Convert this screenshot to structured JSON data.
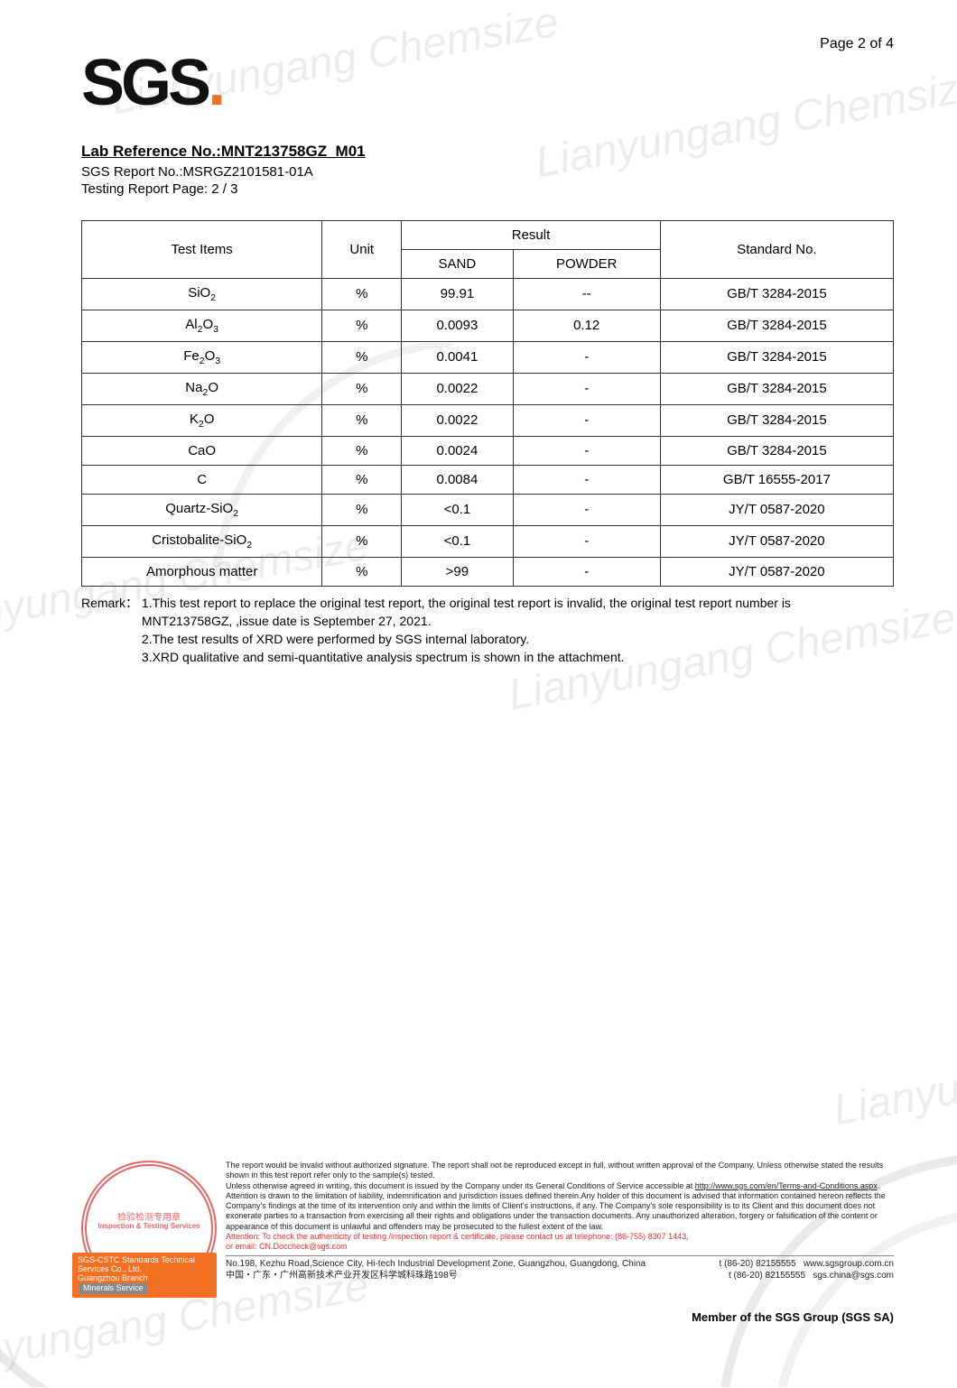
{
  "page": {
    "label": "Page 2 of 4"
  },
  "logo": {
    "text": "SGS"
  },
  "header": {
    "lab_ref": "Lab Reference No.:MNT213758GZ_M01",
    "sgs_report": "SGS Report No.:MSRGZ2101581-01A",
    "testing_page": "Testing Report Page: 2 / 3"
  },
  "table": {
    "headers": {
      "items": "Test Items",
      "unit": "Unit",
      "result": "Result",
      "sand": "SAND",
      "powder": "POWDER",
      "standard": "Standard No."
    },
    "rows": [
      {
        "item_html": "SiO<sub>2</sub>",
        "unit": "%",
        "sand": "99.91",
        "powder": "--",
        "standard": "GB/T 3284-2015"
      },
      {
        "item_html": "Al<sub>2</sub>O<sub>3</sub>",
        "unit": "%",
        "sand": "0.0093",
        "powder": "0.12",
        "standard": "GB/T 3284-2015"
      },
      {
        "item_html": "Fe<sub>2</sub>O<sub>3</sub>",
        "unit": "%",
        "sand": "0.0041",
        "powder": "-",
        "standard": "GB/T 3284-2015"
      },
      {
        "item_html": "Na<sub>2</sub>O",
        "unit": "%",
        "sand": "0.0022",
        "powder": "-",
        "standard": "GB/T 3284-2015"
      },
      {
        "item_html": "K<sub>2</sub>O",
        "unit": "%",
        "sand": "0.0022",
        "powder": "-",
        "standard": "GB/T 3284-2015"
      },
      {
        "item_html": "CaO",
        "unit": "%",
        "sand": "0.0024",
        "powder": "-",
        "standard": "GB/T 3284-2015"
      },
      {
        "item_html": "C",
        "unit": "%",
        "sand": "0.0084",
        "powder": "-",
        "standard": "GB/T 16555-2017"
      },
      {
        "item_html": "Quartz-SiO<sub>2</sub>",
        "unit": "%",
        "sand": "<0.1",
        "powder": "-",
        "standard": "JY/T 0587-2020"
      },
      {
        "item_html": "Cristobalite-SiO<sub>2</sub>",
        "unit": "%",
        "sand": "<0.1",
        "powder": "-",
        "standard": "JY/T 0587-2020"
      },
      {
        "item_html": "Amorphous matter",
        "unit": "%",
        "sand": ">99",
        "powder": "-",
        "standard": "JY/T 0587-2020"
      }
    ]
  },
  "remark": {
    "label": "Remark：",
    "line1": "1.This test report to replace the original test report, the original test report is invalid, the original test report number is MNT213758GZ, ,issue date is September 27, 2021.",
    "line2": "2.The test results of XRD were performed by SGS internal laboratory.",
    "line3": "3.XRD qualitative and semi-quantitative analysis spectrum is shown in the attachment."
  },
  "watermarks": {
    "text": "Lianyungang Chemsize"
  },
  "footer": {
    "seal_line1": "检验检测专用章",
    "seal_line2": "Inspection & Testing Services",
    "bar_line1": "SGS-CSTC Standards Technical Services Co., Ltd.",
    "bar_line2": "Guangzhou Branch",
    "bar_minerals": "Minerals Service",
    "disclaimer_p1": "The report would be invalid without authorized signature. The report shall not be reproduced except in full, without written approval of the Company. Unless otherwise stated the results shown in this test report refer only to the sample(s) tested.",
    "disclaimer_p2a": "Unless otherwise agreed in writing, this document is issued by the Company under its General Conditions of Service accessible at ",
    "disclaimer_link": "http://www.sgs.com/en/Terms-and-Conditions.aspx",
    "disclaimer_p2b": ". Attention is drawn to the limitation of liability, indemnification and jurisdiction issues defined therein.Any holder of this document is advised that information contained hereon reflects the Company's findings at the time of its intervention only and within the limits of Client's instructions, if any. The Company's sole responsibility is to its Client and this document does not exonerate parties to a transaction from exercising all their rights and obligations under the transaction documents. Any unauthorized alteration, forgery or falsification of the content or appearance of this document is unlawful and offenders may be prosecuted to the fullest extent of the law.",
    "attn1": "Attention: To check the authenticity of testing /inspection report & certificate, please contact us at telephone: (86-755) 8307 1443,",
    "attn2": "or email: CN.Doccheck@sgs.com",
    "addr_en": "No.198, Kezhu Road,Science City, Hi-tech Industrial Development Zone, Guangzhou, Guangdong, China",
    "addr_cn": "中国・广东・广州高新技术产业开发区科学城科珠路198号",
    "tel1": "t (86-20) 82155555",
    "tel2": "t (86-20) 82155555",
    "web": "www.sgsgroup.com.cn",
    "email": "sgs.china@sgs.com",
    "member": "Member of the SGS Group (SGS SA)"
  }
}
